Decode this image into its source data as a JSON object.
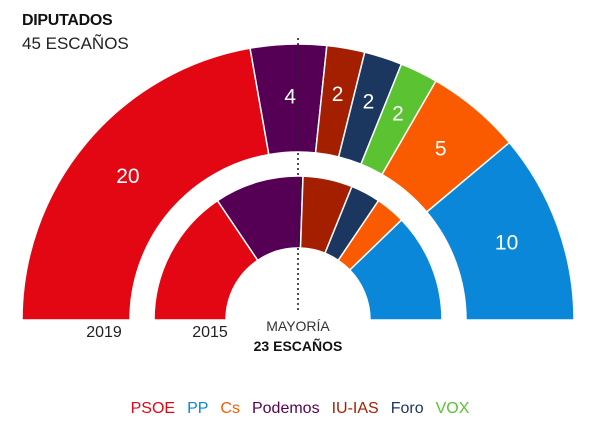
{
  "chart_data": {
    "type": "parliament-semicircle",
    "title": "DIPUTADOS",
    "subtitle": "45 ESCAÑOS",
    "total_seats": 45,
    "majority": {
      "label": "MAYORÍA",
      "value_label": "23 ESCAÑOS",
      "seats": 23
    },
    "parties": [
      {
        "name": "PSOE",
        "color": "#e30613"
      },
      {
        "name": "PP",
        "color": "#0a87d8"
      },
      {
        "name": "Cs",
        "color": "#fa5a00"
      },
      {
        "name": "Podemos",
        "color": "#560055"
      },
      {
        "name": "IU-IAS",
        "color": "#a31f00"
      },
      {
        "name": "Foro",
        "color": "#1b3760"
      },
      {
        "name": "VOX",
        "color": "#5bc232"
      }
    ],
    "series": [
      {
        "name": "2019",
        "order": [
          "PSOE",
          "Podemos",
          "IU-IAS",
          "Foro",
          "VOX",
          "Cs",
          "PP"
        ],
        "values": [
          20,
          4,
          2,
          2,
          2,
          5,
          10
        ],
        "labels_shown": true
      },
      {
        "name": "2015",
        "order": [
          "PSOE",
          "Podemos",
          "IU-IAS",
          "Foro",
          "Cs",
          "PP"
        ],
        "values": [
          14,
          9,
          5,
          3,
          3,
          11
        ],
        "labels_shown": false
      }
    ]
  }
}
